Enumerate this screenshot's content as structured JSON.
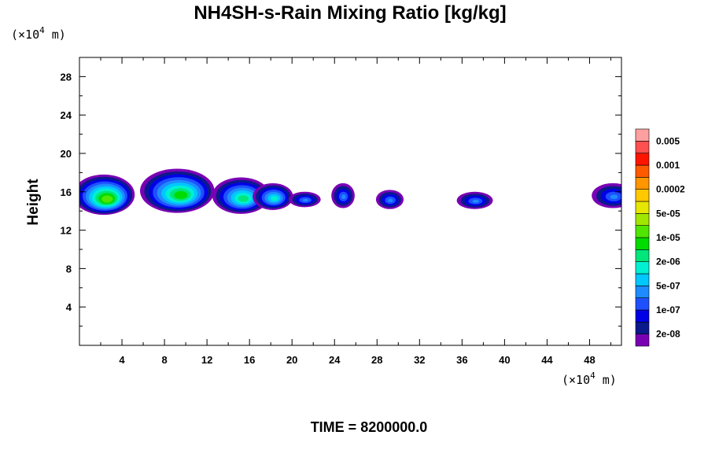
{
  "chart_data": {
    "type": "heatmap",
    "title": "NH4SH-s-Rain Mixing Ratio [kg/kg]",
    "ylabel": "Height",
    "x_unit": {
      "prefix": "(×10",
      "exp": "4",
      "suffix": " m)"
    },
    "y_unit": {
      "prefix": "(×10",
      "exp": "4",
      "suffix": " m)"
    },
    "xlim": [
      0,
      51
    ],
    "ylim": [
      0,
      30
    ],
    "x_ticks": [
      4,
      8,
      12,
      16,
      20,
      24,
      28,
      32,
      36,
      40,
      44,
      48
    ],
    "y_ticks": [
      4,
      8,
      12,
      16,
      20,
      24,
      28
    ],
    "x_tick_labels": [
      "4",
      "8",
      "12",
      "16",
      "20",
      "24",
      "28",
      "32",
      "36",
      "40",
      "44",
      "48"
    ],
    "y_tick_labels": [
      "4",
      "8",
      "12",
      "16",
      "20",
      "24",
      "28"
    ],
    "time_label": "TIME = 8200000.0",
    "colorbar": {
      "colors": [
        "#7a00b4",
        "#0a1a8c",
        "#0000e6",
        "#1e50ff",
        "#1e8cff",
        "#00c8ff",
        "#00f0d2",
        "#00e67a",
        "#00dc00",
        "#50e600",
        "#a0e600",
        "#e6e600",
        "#ffc800",
        "#ff9600",
        "#ff5a00",
        "#ff1400",
        "#ff5050",
        "#ffa0a0"
      ],
      "labels": [
        "2e-08",
        "1e-07",
        "5e-07",
        "2e-06",
        "1e-05",
        "5e-05",
        "0.0002",
        "0.001",
        "0.005"
      ]
    },
    "cells": [
      {
        "x": 2.3,
        "y": 15.7,
        "rx": 2.9,
        "ry": 2.1,
        "level": 9
      },
      {
        "x": 9.2,
        "y": 16.1,
        "rx": 3.5,
        "ry": 2.3,
        "level": 8
      },
      {
        "x": 15.2,
        "y": 15.6,
        "rx": 2.7,
        "ry": 1.9,
        "level": 7
      },
      {
        "x": 18.2,
        "y": 15.5,
        "rx": 1.9,
        "ry": 1.4,
        "level": 6
      },
      {
        "x": 21.2,
        "y": 15.2,
        "rx": 1.5,
        "ry": 0.8,
        "level": 4
      },
      {
        "x": 24.8,
        "y": 15.6,
        "rx": 1.1,
        "ry": 1.3,
        "level": 4
      },
      {
        "x": 29.2,
        "y": 15.2,
        "rx": 1.3,
        "ry": 1.0,
        "level": 4
      },
      {
        "x": 37.2,
        "y": 15.1,
        "rx": 1.7,
        "ry": 0.9,
        "level": 4
      },
      {
        "x": 50.2,
        "y": 15.6,
        "rx": 2.0,
        "ry": 1.3,
        "level": 4
      }
    ]
  }
}
